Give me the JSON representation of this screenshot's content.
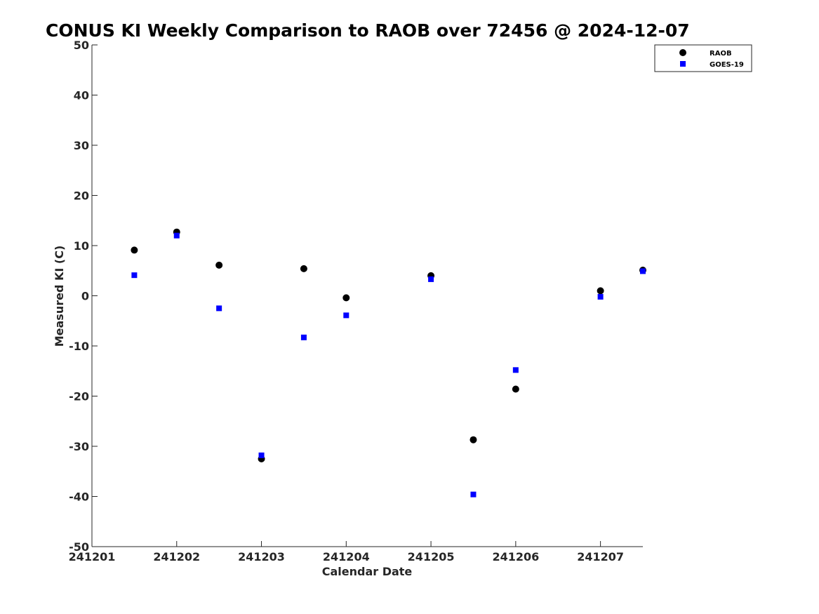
{
  "chart_data": {
    "type": "scatter",
    "title": "CONUS KI Weekly Comparison to RAOB over 72456 @ 2024-12-07",
    "xlabel": "Calendar Date",
    "ylabel": "Measured KI (C)",
    "xlim": [
      0,
      6.5
    ],
    "ylim": [
      -50,
      50
    ],
    "xticks": [
      0,
      1,
      2,
      3,
      4,
      5,
      6
    ],
    "xtick_labels": [
      "241201",
      "241202",
      "241203",
      "241204",
      "241205",
      "241206",
      "241207"
    ],
    "yticks": [
      -50,
      -40,
      -30,
      -20,
      -10,
      0,
      10,
      20,
      30,
      40,
      50
    ],
    "ytick_labels": [
      "-50",
      "-40",
      "-30",
      "-20",
      "-10",
      "0",
      "10",
      "20",
      "30",
      "40",
      "50"
    ],
    "legend_position": "top-right",
    "series": [
      {
        "name": "RAOB",
        "marker": "circle",
        "color": "#000000",
        "x": [
          0.5,
          1.0,
          1.5,
          2.0,
          2.5,
          3.0,
          4.0,
          4.5,
          5.0,
          6.0,
          6.5
        ],
        "y": [
          9.1,
          12.7,
          6.1,
          -32.5,
          5.4,
          -0.4,
          4.0,
          -28.7,
          -18.6,
          1.0,
          5.1
        ]
      },
      {
        "name": "GOES-19",
        "marker": "square",
        "color": "#0000FF",
        "x": [
          0.5,
          1.0,
          1.5,
          2.0,
          2.5,
          3.0,
          4.0,
          4.5,
          5.0,
          6.0,
          6.5
        ],
        "y": [
          4.1,
          12.0,
          -2.5,
          -31.8,
          -8.3,
          -3.9,
          3.3,
          -39.6,
          -14.8,
          -0.2,
          4.9
        ]
      }
    ]
  }
}
